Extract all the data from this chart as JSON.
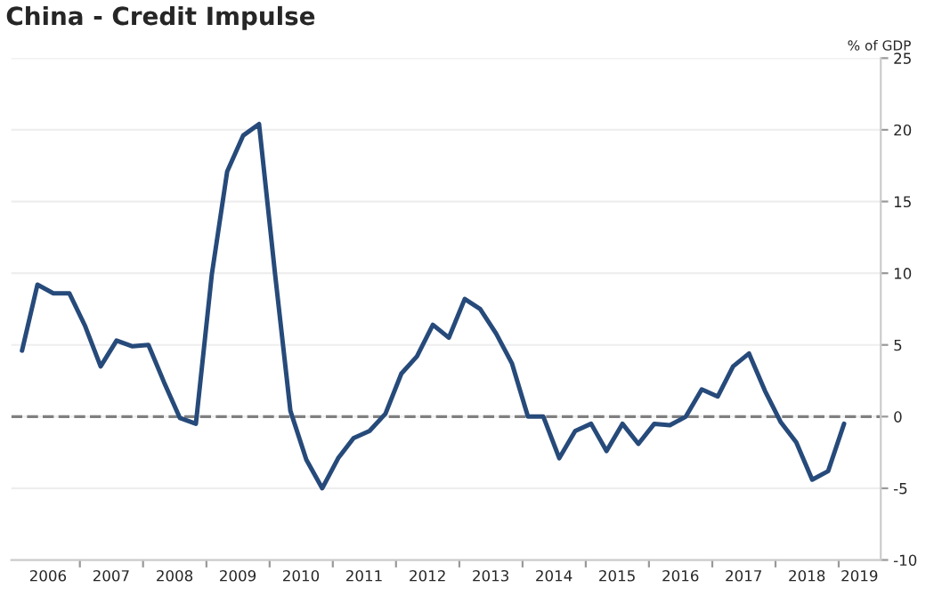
{
  "chart_data": {
    "type": "line",
    "title": "China - Credit Impulse",
    "ylabel": "% of GDP",
    "x": [
      "2006-02",
      "2006-05",
      "2006-08",
      "2006-11",
      "2007-02",
      "2007-05",
      "2007-08",
      "2007-11",
      "2008-02",
      "2008-05",
      "2008-08",
      "2008-11",
      "2009-02",
      "2009-05",
      "2009-08",
      "2009-11",
      "2010-02",
      "2010-05",
      "2010-08",
      "2010-11",
      "2011-02",
      "2011-05",
      "2011-08",
      "2011-11",
      "2012-02",
      "2012-05",
      "2012-08",
      "2012-11",
      "2013-02",
      "2013-05",
      "2013-08",
      "2013-11",
      "2014-02",
      "2014-05",
      "2014-08",
      "2014-11",
      "2015-02",
      "2015-05",
      "2015-08",
      "2015-11",
      "2016-02",
      "2016-05",
      "2016-08",
      "2016-11",
      "2017-02",
      "2017-05",
      "2017-08",
      "2017-11",
      "2018-02",
      "2018-05",
      "2018-08",
      "2018-11",
      "2019-02"
    ],
    "series": [
      {
        "color": "#264a7a",
        "values": [
          4.6,
          9.2,
          8.6,
          8.6,
          6.3,
          3.5,
          5.3,
          4.9,
          5.0,
          2.4,
          -0.1,
          -0.5,
          9.9,
          17.1,
          19.6,
          20.4,
          10.0,
          0.4,
          -3.0,
          -5.0,
          -2.9,
          -1.5,
          -1.0,
          0.2,
          3.0,
          4.2,
          6.4,
          5.5,
          8.2,
          7.5,
          5.8,
          3.7,
          0.0,
          0.0,
          -2.9,
          -1.0,
          -0.5,
          -2.4,
          -0.5,
          -1.9,
          -0.5,
          -0.6,
          0.0,
          1.9,
          1.4,
          3.5,
          4.4,
          1.8,
          -0.4,
          -1.8,
          -4.4,
          -3.8,
          -0.5
        ]
      }
    ],
    "xlim": [
      "2005-12",
      "2019-09"
    ],
    "xticks": [
      {
        "value": "2006-07",
        "label": "2006"
      },
      {
        "value": "2007-07",
        "label": "2007"
      },
      {
        "value": "2008-07",
        "label": "2008"
      },
      {
        "value": "2009-07",
        "label": "2009"
      },
      {
        "value": "2010-07",
        "label": "2010"
      },
      {
        "value": "2011-07",
        "label": "2011"
      },
      {
        "value": "2012-07",
        "label": "2012"
      },
      {
        "value": "2013-07",
        "label": "2013"
      },
      {
        "value": "2014-07",
        "label": "2014"
      },
      {
        "value": "2015-07",
        "label": "2015"
      },
      {
        "value": "2016-07",
        "label": "2016"
      },
      {
        "value": "2017-07",
        "label": "2017"
      },
      {
        "value": "2018-07",
        "label": "2018"
      },
      {
        "value": "2019-05",
        "label": "2019"
      },
      {
        "value": "2007-01",
        "label": null
      },
      {
        "value": "2008-01",
        "label": null
      },
      {
        "value": "2009-01",
        "label": null
      },
      {
        "value": "2010-01",
        "label": null
      },
      {
        "value": "2011-01",
        "label": null
      },
      {
        "value": "2012-01",
        "label": null
      },
      {
        "value": "2013-01",
        "label": null
      },
      {
        "value": "2014-01",
        "label": null
      },
      {
        "value": "2015-01",
        "label": null
      },
      {
        "value": "2016-01",
        "label": null
      },
      {
        "value": "2017-01",
        "label": null
      },
      {
        "value": "2018-01",
        "label": null
      },
      {
        "value": "2019-01",
        "label": null
      }
    ],
    "ylim": [
      -10,
      25
    ],
    "yticks": [
      -10,
      -5,
      0,
      5,
      10,
      15,
      20,
      25
    ],
    "ref_lines": [
      {
        "axis": "y",
        "value": 0,
        "color": "#808080",
        "line_style": "dashed"
      }
    ],
    "grid": "y",
    "legend": false,
    "marker": "none",
    "line_style": "solid"
  }
}
